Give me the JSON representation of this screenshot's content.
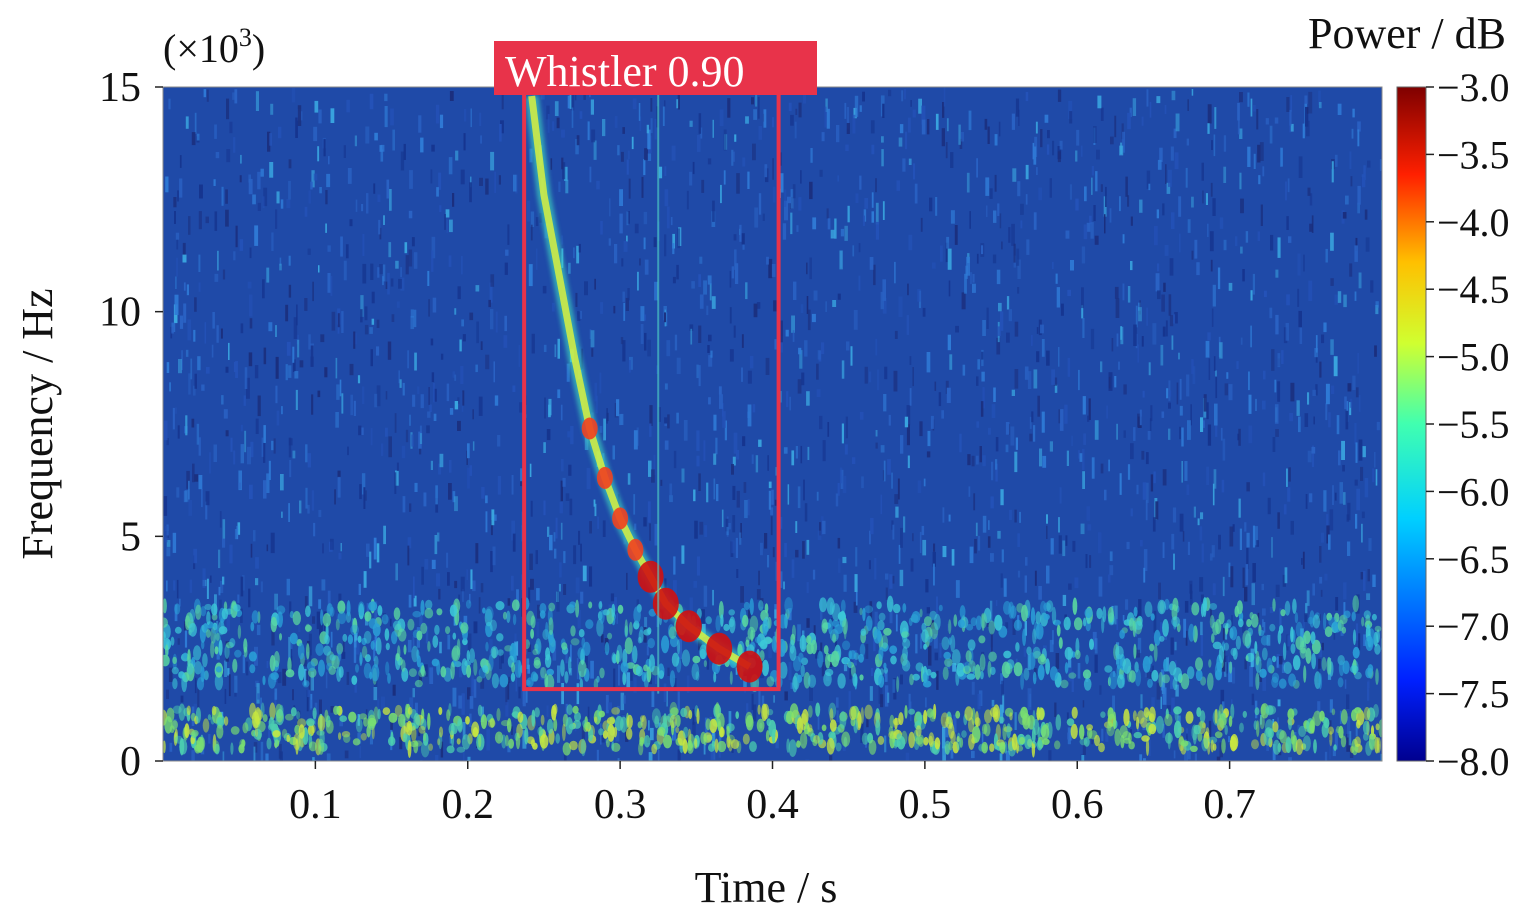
{
  "chart_data": {
    "type": "heatmap",
    "title": "",
    "xlabel": "Time / s",
    "ylabel": "Frequency / Hz",
    "y_multiplier": "(×10",
    "y_multiplier_exp": "3",
    "y_multiplier_close": ")",
    "xlim": [
      0,
      0.8
    ],
    "ylim": [
      0,
      15
    ],
    "x_ticks": [
      0.1,
      0.2,
      0.3,
      0.4,
      0.5,
      0.6,
      0.7
    ],
    "x_tick_labels": [
      "0.1",
      "0.2",
      "0.3",
      "0.4",
      "0.5",
      "0.6",
      "0.7"
    ],
    "y_ticks": [
      0,
      5,
      10,
      15
    ],
    "y_tick_labels": [
      "0",
      "5",
      "10",
      "15"
    ],
    "colorbar": {
      "label": "Power / dB",
      "range": [
        -8.0,
        -3.0
      ],
      "ticks": [
        -3.0,
        -3.5,
        -4.0,
        -4.5,
        -5.0,
        -5.5,
        -6.0,
        -6.5,
        -7.0,
        -7.5,
        -8.0
      ],
      "tick_labels": [
        "−3.0",
        "−3.5",
        "−4.0",
        "−4.5",
        "−5.0",
        "−5.5",
        "−6.0",
        "−6.5",
        "−7.0",
        "−7.5",
        "−8.0"
      ],
      "colormap": "jet"
    },
    "detection": {
      "label": "Whistler 0.90",
      "class": "Whistler",
      "confidence": 0.9,
      "x_range": [
        0.237,
        0.404
      ],
      "y_range": [
        1.6,
        15
      ]
    },
    "whistler_trace": [
      {
        "t": 0.242,
        "f": 14.8
      },
      {
        "t": 0.25,
        "f": 12.6
      },
      {
        "t": 0.26,
        "f": 10.8
      },
      {
        "t": 0.27,
        "f": 9.0
      },
      {
        "t": 0.28,
        "f": 7.4
      },
      {
        "t": 0.29,
        "f": 6.3
      },
      {
        "t": 0.3,
        "f": 5.4
      },
      {
        "t": 0.31,
        "f": 4.7
      },
      {
        "t": 0.32,
        "f": 4.1
      },
      {
        "t": 0.33,
        "f": 3.5
      },
      {
        "t": 0.345,
        "f": 3.0
      },
      {
        "t": 0.365,
        "f": 2.5
      },
      {
        "t": 0.385,
        "f": 2.1
      }
    ],
    "grid": false,
    "colors": {
      "detection_box": "#e8334a",
      "detection_label_bg": "#e8334a",
      "background_field": "#1f4aa8"
    }
  }
}
